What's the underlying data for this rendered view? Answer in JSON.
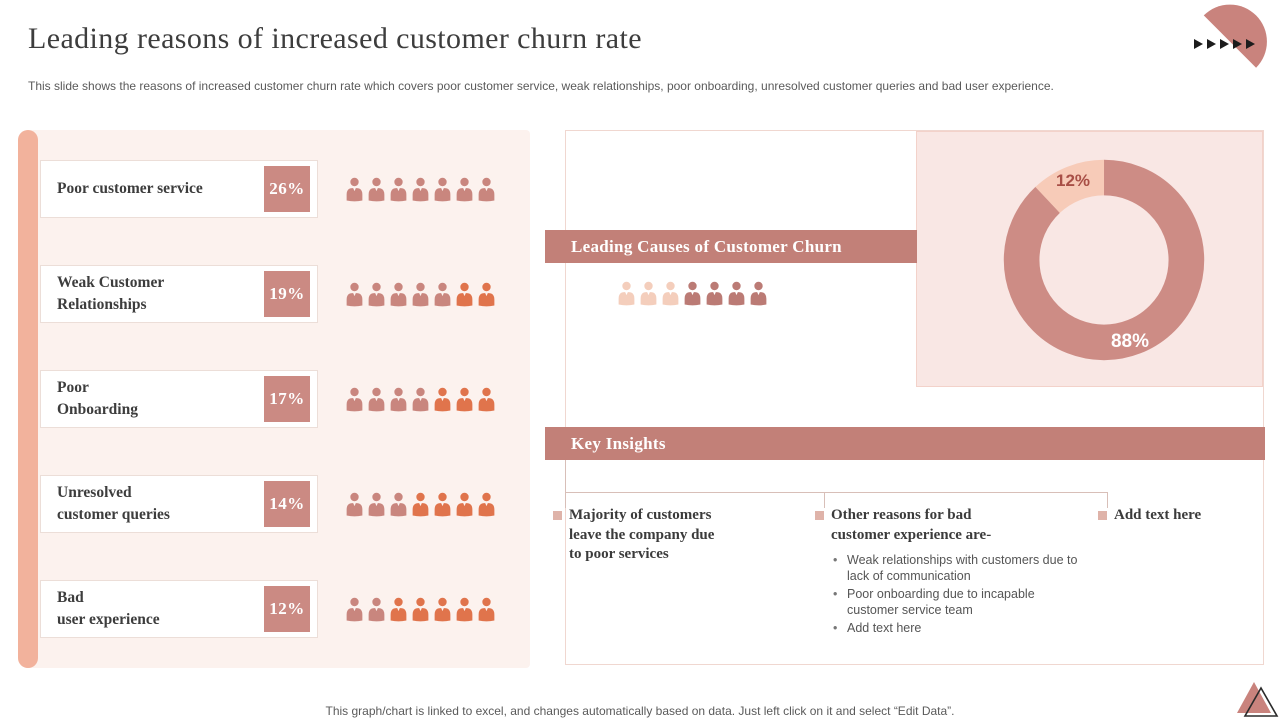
{
  "slide": {
    "title": "Leading reasons of increased customer churn rate",
    "subtitle": "This slide shows the reasons of increased customer churn rate which covers poor customer service, weak relationships, poor onboarding, unresolved customer queries and bad user experience.",
    "footer": "This graph/chart is linked to excel, and changes automatically based on data. Just left click on it and select “Edit Data”."
  },
  "banners": {
    "causes": "Leading Causes of Customer Churn",
    "insights": "Key Insights"
  },
  "reasons": [
    {
      "label": "Poor customer service",
      "pct": "26%",
      "rose_icons": 7,
      "orange_icons": 0
    },
    {
      "label": "Weak Customer\nRelationships",
      "pct": "19%",
      "rose_icons": 5,
      "orange_icons": 2
    },
    {
      "label": "Poor\nOnboarding",
      "pct": "17%",
      "rose_icons": 4,
      "orange_icons": 3
    },
    {
      "label": "Unresolved\ncustomer queries",
      "pct": "14%",
      "rose_icons": 3,
      "orange_icons": 4
    },
    {
      "label": "Bad\nuser experience",
      "pct": "12%",
      "rose_icons": 2,
      "orange_icons": 5
    }
  ],
  "causes_pictogram": {
    "light_icons": 3,
    "dark_icons": 4,
    "total": 7
  },
  "insights": {
    "columns": [
      {
        "heading": "Majority of customers\nleave the company due\nto poor services",
        "bullets": []
      },
      {
        "heading": "Other reasons for bad\ncustomer experience are-",
        "bullets": [
          "Weak relationships with customers due to lack of communication",
          "Poor onboarding due to incapable customer service team",
          "Add text here"
        ]
      },
      {
        "heading": "Add text here",
        "bullets": []
      }
    ]
  },
  "chart_data": [
    {
      "type": "bar",
      "subtype": "pictograph",
      "title": "Leading reasons of increased customer churn rate",
      "categories": [
        "Poor customer service",
        "Weak Customer Relationships",
        "Poor Onboarding",
        "Unresolved customer queries",
        "Bad user experience"
      ],
      "values": [
        26,
        19,
        17,
        14,
        12
      ],
      "unit": "%",
      "icons_per_row": 7,
      "legend_position": "none"
    },
    {
      "type": "pie",
      "subtype": "doughnut",
      "title": "Leading Causes of Customer Churn",
      "labels": [
        "88%",
        "12%"
      ],
      "values": [
        88,
        12
      ],
      "colors": [
        "#cd8c85",
        "#f7cbb8"
      ],
      "legend_position": "none"
    }
  ],
  "colors": {
    "accent_bar": "#f2b29c",
    "panel_bg": "#fcf2ee",
    "banner": "#c28078",
    "pct_square": "#cb8a83",
    "person_rose": "#c9867e",
    "person_orange": "#e0744c",
    "person_light": "#f4cebc",
    "person_dark": "#bb7b75",
    "donut_panel_bg": "#f9e7e4",
    "donut_main": "#cd8c85",
    "donut_slice": "#f7cbb8",
    "donut_label_dark": "#a84f46"
  },
  "decor": {
    "arrow_count": 5
  }
}
